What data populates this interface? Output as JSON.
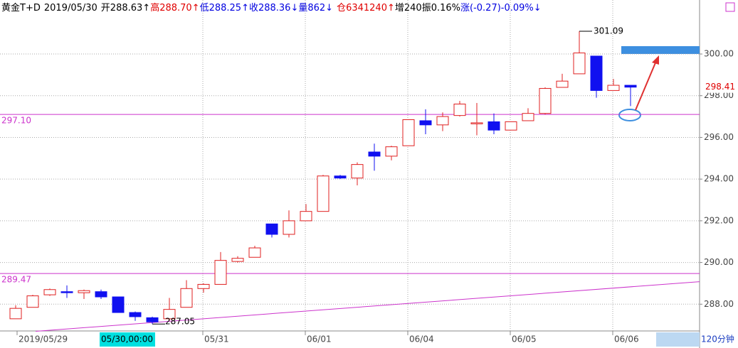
{
  "chart_data": {
    "type": "candlestick",
    "header": [
      {
        "text": "黄金T+D",
        "color": "#000000"
      },
      {
        "text": "2019/05/30",
        "color": "#000000"
      },
      {
        "text": "开288.63↑",
        "color": "#000000"
      },
      {
        "text": "高288.70↑",
        "color": "#e00000"
      },
      {
        "text": "低288.25↑",
        "color": "#0000e0"
      },
      {
        "text": "收288.36↓",
        "color": "#0000e0"
      },
      {
        "text": "量862↓",
        "color": "#0000e0"
      },
      {
        "text": "仓6341240↑",
        "color": "#e00000"
      },
      {
        "text": "增240",
        "color": "#000000"
      },
      {
        "text": "振0.16%",
        "color": "#000000"
      },
      {
        "text": "涨(-0.27)-0.09%↓",
        "color": "#0000e0"
      }
    ],
    "categories": [
      "2019/05/29",
      null,
      null,
      null,
      null,
      null,
      null,
      null,
      null,
      null,
      null,
      "05/31",
      null,
      null,
      null,
      null,
      null,
      "06/01",
      null,
      null,
      null,
      null,
      null,
      "06/04",
      null,
      null,
      null,
      null,
      null,
      "06/05",
      null,
      null,
      null,
      null,
      null,
      "06/06",
      null
    ],
    "open": [
      287.3,
      287.85,
      288.45,
      288.6,
      288.55,
      288.6,
      288.35,
      287.6,
      287.35,
      287.3,
      287.85,
      288.75,
      288.95,
      290.05,
      290.25,
      291.85,
      291.35,
      292.0,
      292.45,
      294.15,
      294.05,
      295.3,
      295.1,
      295.6,
      296.8,
      296.6,
      297.05,
      296.65,
      296.75,
      296.35,
      296.8,
      297.15,
      298.4,
      299.05,
      299.9,
      298.25,
      298.5
    ],
    "high": [
      287.95,
      288.45,
      288.75,
      288.9,
      288.7,
      288.7,
      288.35,
      287.65,
      287.4,
      288.3,
      289.15,
      289.0,
      290.5,
      290.3,
      290.8,
      291.85,
      292.5,
      292.8,
      294.2,
      294.2,
      294.8,
      295.7,
      295.6,
      296.85,
      297.35,
      297.2,
      297.75,
      297.65,
      297.15,
      296.75,
      297.4,
      298.4,
      299.05,
      301.09,
      299.9,
      298.8,
      298.5
    ],
    "low": [
      287.3,
      287.85,
      288.4,
      288.3,
      288.25,
      288.25,
      287.6,
      287.2,
      287.05,
      287.2,
      287.85,
      288.55,
      288.95,
      290.0,
      290.25,
      291.2,
      291.2,
      292.0,
      292.45,
      294.0,
      293.7,
      294.4,
      294.9,
      295.6,
      296.15,
      296.3,
      297.0,
      296.1,
      296.15,
      296.35,
      296.8,
      297.1,
      298.4,
      299.05,
      297.9,
      298.25,
      297.5
    ],
    "close": [
      287.8,
      288.4,
      288.7,
      288.55,
      288.65,
      288.35,
      287.6,
      287.4,
      287.15,
      287.75,
      288.75,
      288.95,
      290.1,
      290.2,
      290.7,
      291.35,
      292.0,
      292.45,
      294.15,
      294.05,
      294.7,
      295.1,
      295.55,
      296.85,
      296.6,
      297.0,
      297.6,
      296.7,
      296.35,
      296.75,
      297.15,
      298.35,
      298.7,
      300.05,
      298.25,
      298.5,
      298.41
    ],
    "up_color": "#e02020",
    "down_color": "#1010f0",
    "ylim": [
      286.75,
      302.59
    ],
    "yticks": [
      {
        "value": 288,
        "label": "288.00"
      },
      {
        "value": 290,
        "label": "290.00"
      },
      {
        "value": 292,
        "label": "292.00"
      },
      {
        "value": 294,
        "label": "294.00"
      },
      {
        "value": 296,
        "label": "296.00"
      },
      {
        "value": 298,
        "label": "298.00"
      },
      {
        "value": 300,
        "label": "300.00"
      }
    ],
    "grid": true,
    "levels": [
      {
        "value": 297.1,
        "label": "297.10"
      },
      {
        "value": 289.47,
        "label": "289.47"
      }
    ],
    "level_color": "#cc33cc",
    "trendline": {
      "x": [
        1.17,
        40.04
      ],
      "y": [
        286.7,
        289.08
      ]
    },
    "cursor_label": "05/30,00:00",
    "period": "120分钟"
  }
}
